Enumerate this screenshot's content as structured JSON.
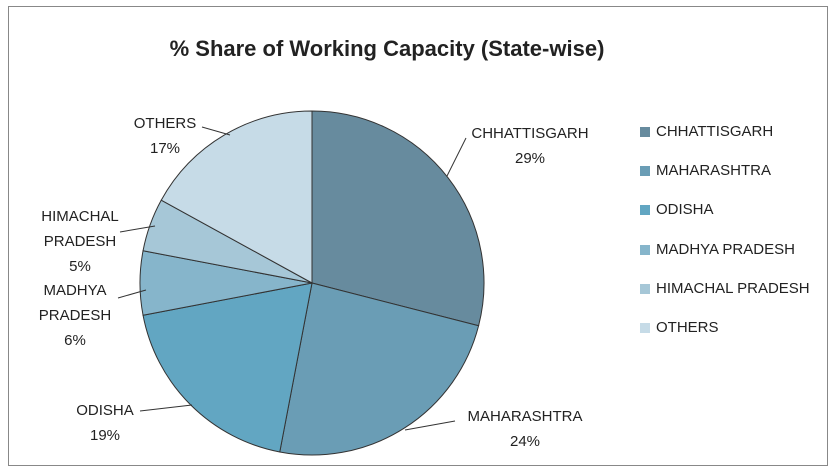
{
  "chart_data": {
    "type": "pie",
    "title": "% Share of Working Capacity (State-wise)",
    "categories": [
      "CHHATTISGARH",
      "MAHARASHTRA",
      "ODISHA",
      "MADHYA PRADESH",
      "HIMACHAL PRADESH",
      "OTHERS"
    ],
    "values": [
      29,
      24,
      19,
      6,
      5,
      17
    ],
    "value_labels": [
      "29%",
      "24%",
      "19%",
      "6%",
      "5%",
      "17%"
    ],
    "colors": [
      "#678b9e",
      "#6a9db5",
      "#62a6c2",
      "#86b5cb",
      "#a6c7d7",
      "#c6dbe7"
    ],
    "legend": "right"
  }
}
